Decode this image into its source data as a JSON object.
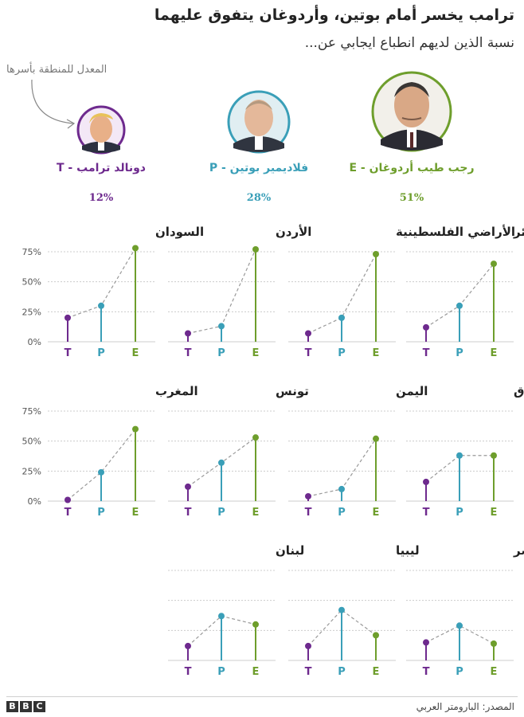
{
  "title": "ترامب يخسر أمام بوتين، وأردوغان يتفوق عليهما",
  "subtitle": "نسبة الذين لديهم انطباع ايجابي عن...",
  "region_note": "المعدل للمنطقة بأسرها",
  "colors": {
    "T": "#6e2a8e",
    "P": "#3a9fb8",
    "E": "#6e9e2c",
    "connector": "#999999",
    "grid": "#cccccc"
  },
  "leaders": [
    {
      "key": "E",
      "name": "رجب طيب أردوغان - E",
      "value_label": "51%",
      "value": 51,
      "avatar_icon": "erdogan-portrait-icon"
    },
    {
      "key": "P",
      "name": "فلاديمير بوتين - P",
      "value_label": "28%",
      "value": 28,
      "avatar_icon": "putin-portrait-icon"
    },
    {
      "key": "T",
      "name": "دونالد ترامب - T",
      "value_label": "12%",
      "value": 12,
      "avatar_icon": "trump-portrait-icon"
    }
  ],
  "chart_data": {
    "type": "scatter",
    "categories": [
      "T",
      "P",
      "E"
    ],
    "ylim": [
      0,
      75
    ],
    "yticks": [
      "0%",
      "25%",
      "50%",
      "75%"
    ],
    "grid": true,
    "panels": [
      {
        "name": "الجزائر",
        "values": [
          12,
          30,
          65
        ]
      },
      {
        "name": "الأراضي الفلسطينية",
        "values": [
          7,
          20,
          73
        ]
      },
      {
        "name": "الأردن",
        "values": [
          7,
          13,
          77
        ]
      },
      {
        "name": "السودان",
        "values": [
          20,
          30,
          78
        ]
      },
      {
        "name": "العراق",
        "values": [
          16,
          38,
          38
        ]
      },
      {
        "name": "اليمن",
        "values": [
          4,
          10,
          52
        ]
      },
      {
        "name": "تونس",
        "values": [
          12,
          32,
          53
        ]
      },
      {
        "name": "المغرب",
        "values": [
          1,
          24,
          60
        ]
      },
      {
        "name": "مصر",
        "values": [
          15,
          29,
          14
        ]
      },
      {
        "name": "ليبيا",
        "values": [
          12,
          42,
          21
        ]
      },
      {
        "name": "لبنان",
        "values": [
          12,
          37,
          30
        ]
      }
    ]
  },
  "footer": {
    "source": "المصدر: البارومتر العربي",
    "logo": [
      "B",
      "B",
      "C"
    ]
  }
}
